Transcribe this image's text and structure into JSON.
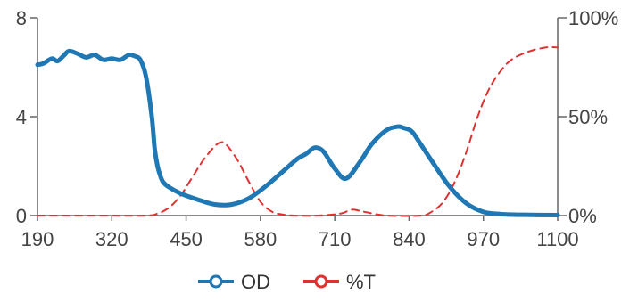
{
  "chart_data": {
    "type": "line",
    "x_ticks": [
      "190",
      "320",
      "450",
      "580",
      "710",
      "840",
      "970",
      "1100"
    ],
    "x_range": [
      190,
      1100
    ],
    "y_left_ticks": [
      "0",
      "4",
      "8"
    ],
    "y_left_range": [
      0,
      8
    ],
    "y_right_ticks": [
      "0%",
      "50%",
      "100%"
    ],
    "y_right_range": [
      0,
      100
    ],
    "grid": false,
    "legend_position": "bottom",
    "series": [
      {
        "name": "OD",
        "axis": "left",
        "color": "#1f77b4",
        "style": "solid",
        "x": [
          190,
          200,
          215,
          225,
          235,
          245,
          260,
          275,
          290,
          305,
          320,
          335,
          350,
          360,
          370,
          380,
          390,
          395,
          400,
          405,
          410,
          420,
          440,
          470,
          500,
          530,
          560,
          590,
          620,
          645,
          660,
          675,
          690,
          710,
          730,
          755,
          775,
          800,
          820,
          830,
          845,
          860,
          880,
          910,
          940,
          970,
          1000,
          1040,
          1100
        ],
        "y": [
          6.1,
          6.15,
          6.35,
          6.25,
          6.45,
          6.65,
          6.55,
          6.4,
          6.5,
          6.3,
          6.35,
          6.3,
          6.5,
          6.45,
          6.3,
          5.6,
          4.0,
          2.7,
          2.0,
          1.6,
          1.35,
          1.15,
          0.9,
          0.65,
          0.45,
          0.45,
          0.7,
          1.2,
          1.8,
          2.3,
          2.5,
          2.75,
          2.6,
          1.9,
          1.5,
          2.2,
          2.9,
          3.45,
          3.6,
          3.55,
          3.4,
          2.9,
          2.2,
          1.2,
          0.5,
          0.15,
          0.06,
          0.03,
          0.02
        ]
      },
      {
        "name": "%T",
        "axis": "right",
        "color": "#e03030",
        "style": "dashed",
        "x": [
          190,
          300,
          380,
          400,
          420,
          440,
          460,
          480,
          500,
          510,
          520,
          540,
          560,
          580,
          600,
          620,
          640,
          680,
          720,
          740,
          760,
          800,
          860,
          880,
          900,
          920,
          940,
          960,
          980,
          1000,
          1020,
          1050,
          1080,
          1100
        ],
        "y": [
          0,
          0,
          0,
          1,
          4,
          10,
          19,
          28,
          35,
          37,
          36,
          28,
          17,
          7,
          2,
          0.5,
          0,
          0,
          1,
          3,
          2,
          0,
          0,
          2,
          7,
          17,
          32,
          50,
          64,
          73,
          79,
          83,
          85,
          85
        ]
      }
    ]
  }
}
